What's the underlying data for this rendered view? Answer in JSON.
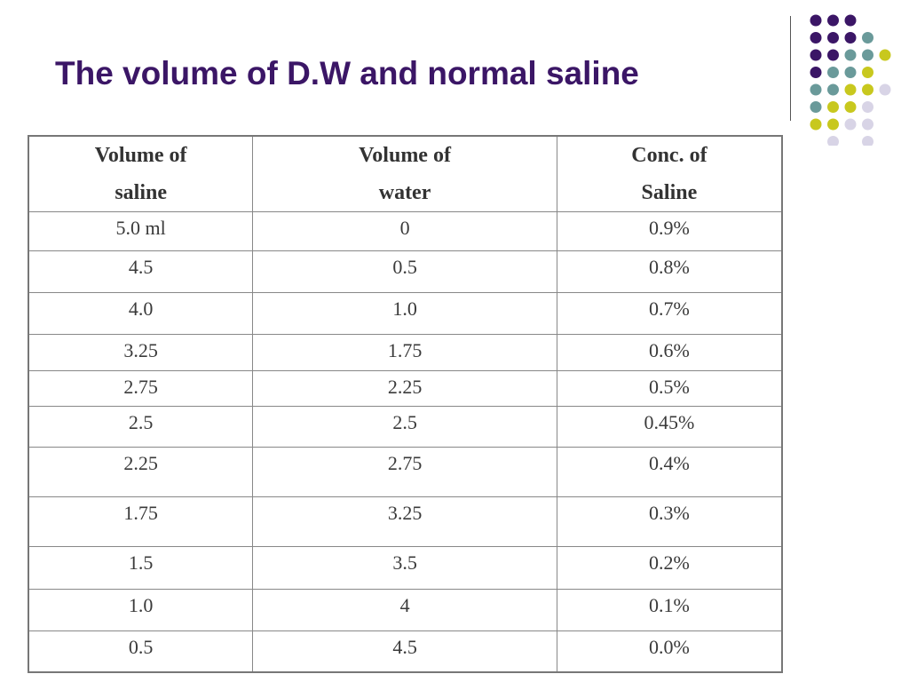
{
  "slide": {
    "title": "The volume of D.W and normal saline"
  },
  "decoration": {
    "dot_colors": {
      "purple": "#3b1666",
      "teal": "#6a9a9a",
      "olive": "#c8c81e",
      "lavender": "#d8d4e6"
    }
  },
  "table": {
    "headers": [
      [
        "Volume of",
        "saline"
      ],
      [
        "Volume of",
        "water"
      ],
      [
        "Conc. of",
        "Saline"
      ]
    ],
    "rows": [
      [
        "5.0 ml",
        "0",
        "0.9%"
      ],
      [
        "4.5",
        "0.5",
        "0.8%"
      ],
      [
        "4.0",
        "1.0",
        "0.7%"
      ],
      [
        "3.25",
        "1.75",
        "0.6%"
      ],
      [
        "2.75",
        "2.25",
        "0.5%"
      ],
      [
        "2.5",
        "2.5",
        "0.45%"
      ],
      [
        "2.25",
        "2.75",
        "0.4%"
      ],
      [
        "1.75",
        "3.25",
        "0.3%"
      ],
      [
        "1.5",
        "3.5",
        "0.2%"
      ],
      [
        "1.0",
        "4",
        "0.1%"
      ],
      [
        "0.5",
        "4.5",
        "0.0%"
      ]
    ]
  }
}
